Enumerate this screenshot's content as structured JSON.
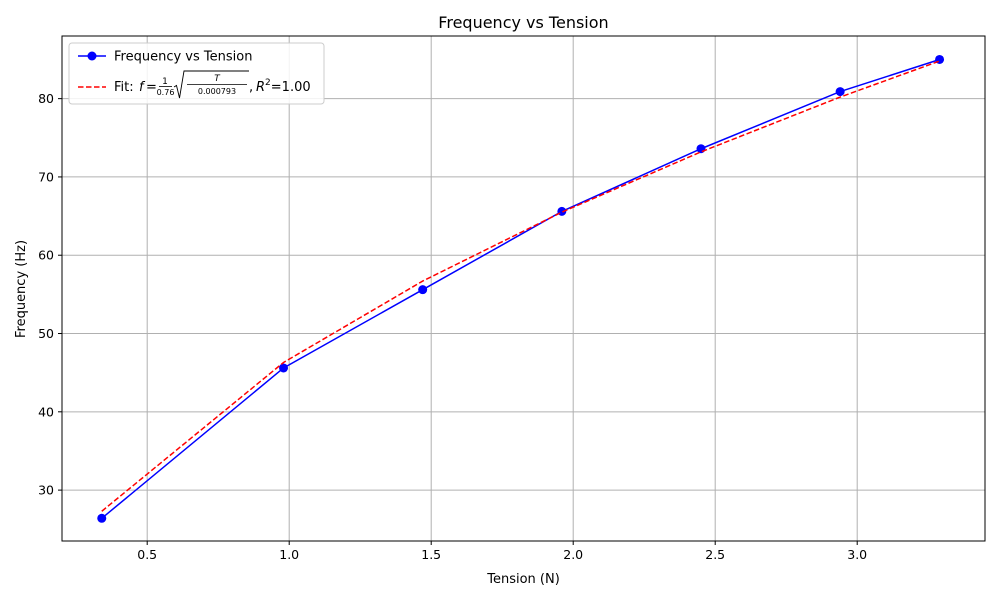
{
  "chart_data": {
    "type": "line",
    "title": "Frequency vs Tension",
    "xlabel": "Tension (N)",
    "ylabel": "Frequency (Hz)",
    "xlim": [
      0.2,
      3.45
    ],
    "ylim": [
      23.5,
      88
    ],
    "xticks": [
      0.5,
      1.0,
      1.5,
      2.0,
      2.5,
      3.0
    ],
    "xtick_labels": [
      "0.5",
      "1.0",
      "1.5",
      "2.0",
      "2.5",
      "3.0"
    ],
    "yticks": [
      30,
      40,
      50,
      60,
      70,
      80
    ],
    "ytick_labels": [
      "30",
      "40",
      "50",
      "60",
      "70",
      "80"
    ],
    "grid": true,
    "legend_position": "top-left",
    "series": [
      {
        "name": "Frequency vs Tension",
        "style": "solid-with-markers",
        "color": "#0000ff",
        "x": [
          0.34,
          0.98,
          1.47,
          1.96,
          2.45,
          2.94,
          3.29
        ],
        "y": [
          26.4,
          45.6,
          55.6,
          65.6,
          73.6,
          80.9,
          85.0
        ]
      },
      {
        "name": "Fit",
        "legend_prefix": "Fit: ",
        "legend_formula": "f = (1/0.76)·√(T/0.000793)",
        "legend_suffix": ", R²=1.00",
        "style": "dashed",
        "color": "#ff0000",
        "x": [
          0.34,
          0.98,
          1.47,
          1.96,
          2.45,
          2.94,
          3.29
        ],
        "y": [
          27.3,
          46.3,
          56.7,
          65.5,
          73.2,
          80.2,
          84.8
        ]
      }
    ]
  }
}
